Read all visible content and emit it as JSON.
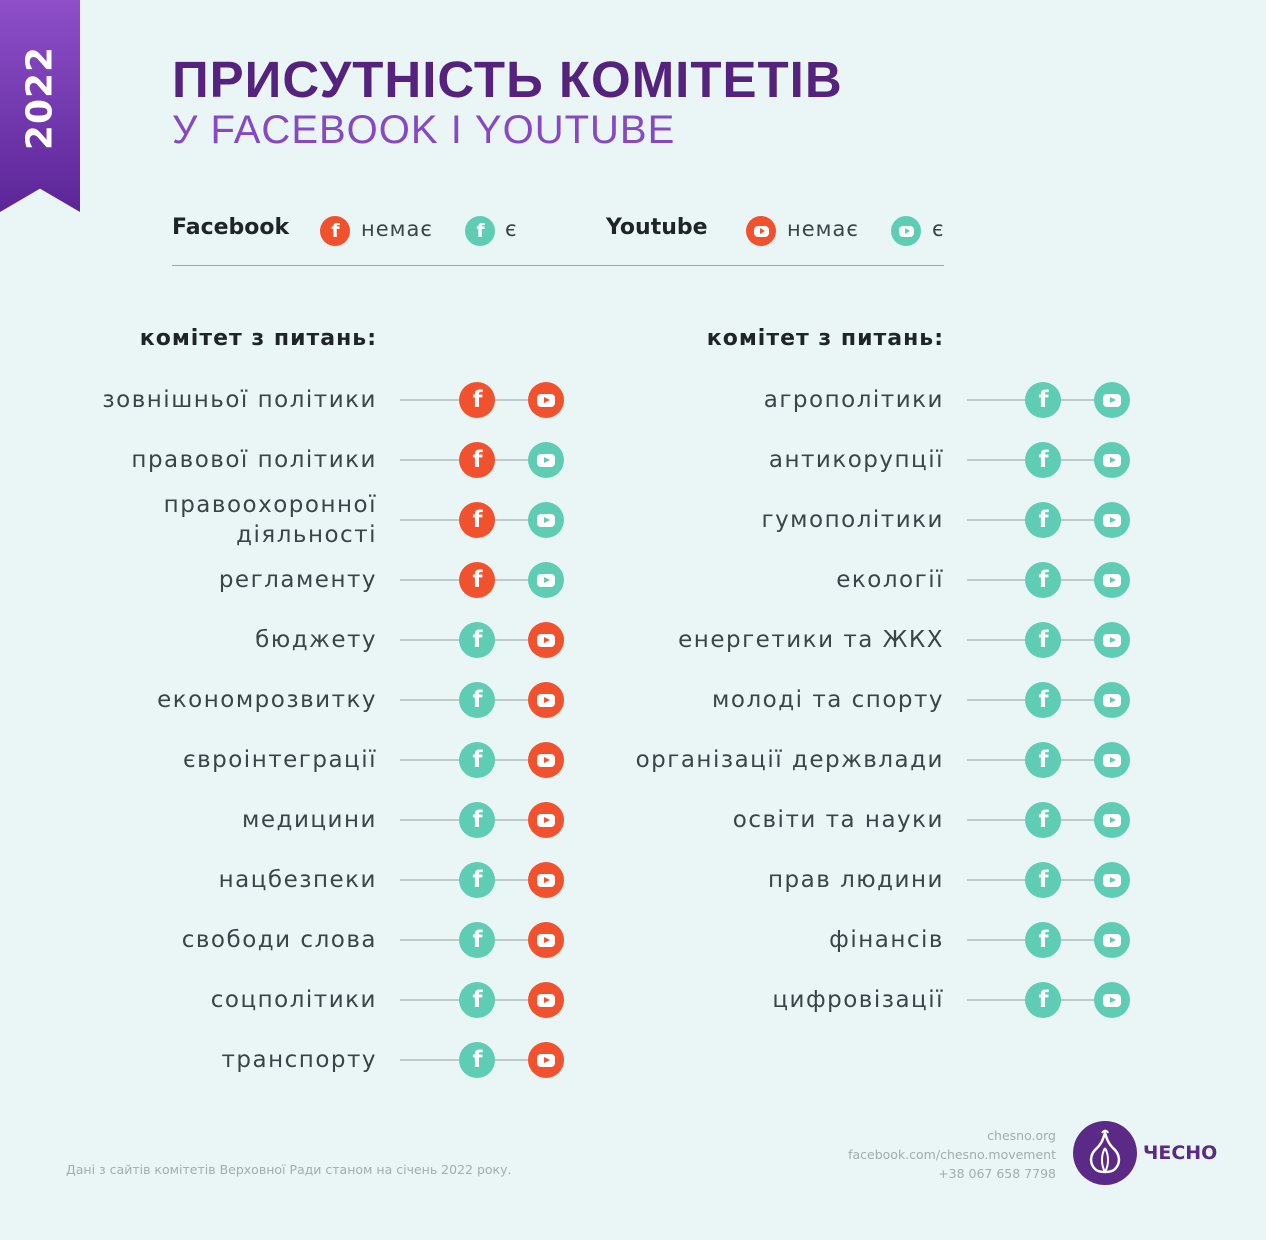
{
  "year": "2022",
  "title": "ПРИСУТНІСТЬ КОМІТЕТІВ",
  "subtitle": "У FACEBOOK І YOUTUBE",
  "legend": {
    "facebook_label": "Facebook",
    "youtube_label": "Youtube",
    "absent": "немає",
    "present": "є"
  },
  "colors": {
    "absent": "#f2512e",
    "present": "#5fcdb4",
    "brand": "#5b2a86"
  },
  "column_heading": "комітет з питань:",
  "left_committees": [
    {
      "name": "зовнішньої політики",
      "facebook": "absent",
      "youtube": "absent"
    },
    {
      "name": "правової політики",
      "facebook": "absent",
      "youtube": "present"
    },
    {
      "name": "правоохоронної діяльності",
      "facebook": "absent",
      "youtube": "present"
    },
    {
      "name": "регламенту",
      "facebook": "absent",
      "youtube": "present"
    },
    {
      "name": "бюджету",
      "facebook": "present",
      "youtube": "absent"
    },
    {
      "name": "економрозвитку",
      "facebook": "present",
      "youtube": "absent"
    },
    {
      "name": "євроінтеграції",
      "facebook": "present",
      "youtube": "absent"
    },
    {
      "name": "медицини",
      "facebook": "present",
      "youtube": "absent"
    },
    {
      "name": "нацбезпеки",
      "facebook": "present",
      "youtube": "absent"
    },
    {
      "name": "свободи слова",
      "facebook": "present",
      "youtube": "absent"
    },
    {
      "name": "соцполітики",
      "facebook": "present",
      "youtube": "absent"
    },
    {
      "name": "транспорту",
      "facebook": "present",
      "youtube": "absent"
    }
  ],
  "right_committees": [
    {
      "name": "агрополітики",
      "facebook": "present",
      "youtube": "present"
    },
    {
      "name": "антикорупції",
      "facebook": "present",
      "youtube": "present"
    },
    {
      "name": "гумополітики",
      "facebook": "present",
      "youtube": "present"
    },
    {
      "name": "екології",
      "facebook": "present",
      "youtube": "present"
    },
    {
      "name": "енергетики та ЖКХ",
      "facebook": "present",
      "youtube": "present"
    },
    {
      "name": "молоді та спорту",
      "facebook": "present",
      "youtube": "present"
    },
    {
      "name": "організації держвлади",
      "facebook": "present",
      "youtube": "present"
    },
    {
      "name": "освіти та науки",
      "facebook": "present",
      "youtube": "present"
    },
    {
      "name": "прав людини",
      "facebook": "present",
      "youtube": "present"
    },
    {
      "name": "фінансів",
      "facebook": "present",
      "youtube": "present"
    },
    {
      "name": "цифровізації",
      "facebook": "present",
      "youtube": "present"
    }
  ],
  "source_note": "Дані з сайтів комітетів Верховної Ради станом на січень 2022 року.",
  "contacts": {
    "site": "chesno.org",
    "facebook": "facebook.com/chesno.movement",
    "phone": "+38 067 658 7798"
  },
  "brand": "ЧЕСНО",
  "icons": {
    "facebook": "facebook-icon",
    "youtube": "youtube-icon",
    "logo": "garlic-logo-icon"
  }
}
